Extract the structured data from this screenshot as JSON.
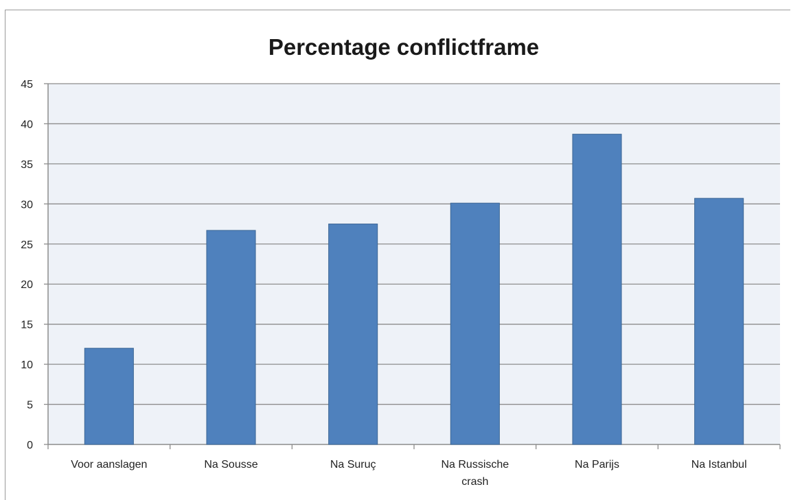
{
  "chart_data": {
    "type": "bar",
    "title": "Percentage conflictframe",
    "categories": [
      [
        "Voor aanslagen"
      ],
      [
        "Na Sousse"
      ],
      [
        "Na Suruç"
      ],
      [
        "Na Russische",
        "crash"
      ],
      [
        "Na Parijs"
      ],
      [
        "Na Istanbul"
      ]
    ],
    "values": [
      12,
      26.7,
      27.5,
      30.1,
      38.7,
      30.7
    ],
    "ylim": [
      0,
      45
    ],
    "yticks": [
      0,
      5,
      10,
      15,
      20,
      25,
      30,
      35,
      40,
      45
    ],
    "xlabel": "",
    "ylabel": "",
    "grid": true,
    "legend": "none",
    "colors": {
      "bar": "#4f81bd",
      "bar_edge": "#3a6594",
      "plot_bg": "#eef2f8",
      "grid": "#8c8c8c"
    }
  }
}
